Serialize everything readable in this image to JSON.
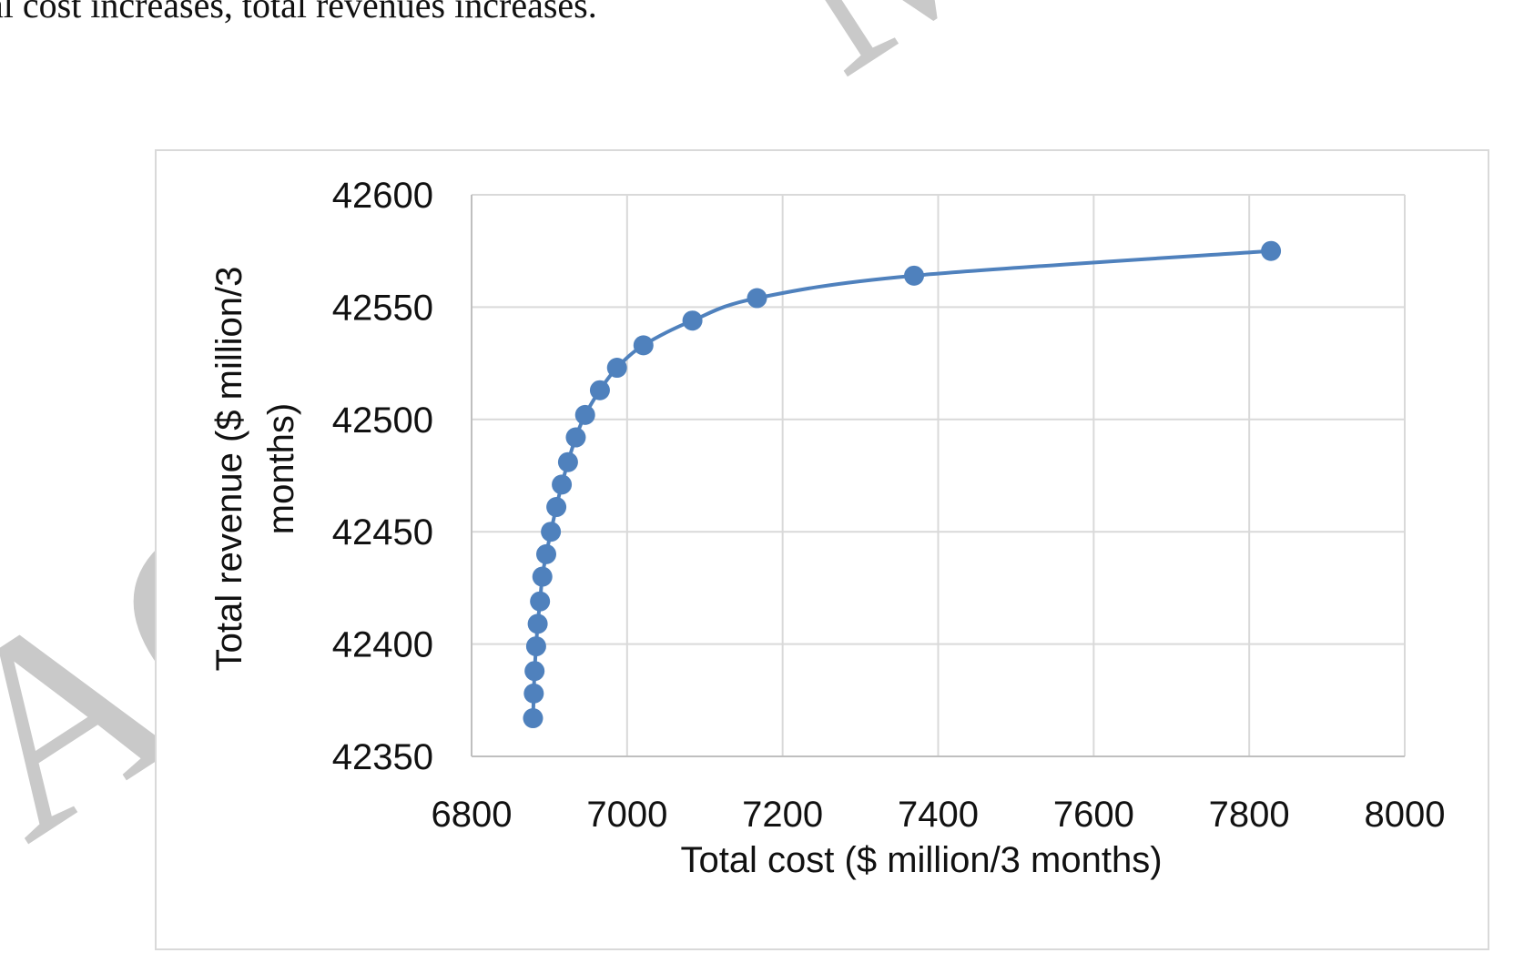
{
  "intro_text": "al cost increases, total revenues increases.",
  "watermark_text": "ACCEPTED MANUSCRIPT",
  "chart_data": {
    "type": "scatter",
    "title": "",
    "xlabel": "Total cost ($ million/3 months)",
    "ylabel_lines": [
      "Total revenue ($ million/3",
      "months)"
    ],
    "xlim": [
      6800,
      8000
    ],
    "ylim": [
      42350,
      42600
    ],
    "xticks": [
      6800,
      7000,
      7200,
      7400,
      7600,
      7800,
      8000
    ],
    "yticks": [
      42350,
      42400,
      42450,
      42500,
      42550,
      42600
    ],
    "grid": true,
    "legend": "none",
    "marker_color": "#4f81bd",
    "line_color": "#4f81bd",
    "series": [
      {
        "x": [
          6879,
          6880,
          6881,
          6883,
          6885,
          6888,
          6891,
          6896,
          6902,
          6909,
          6916,
          6924,
          6934,
          6946,
          6965,
          6987,
          7021,
          7084,
          7167,
          7369,
          7828
        ],
        "y": [
          42367,
          42378,
          42388,
          42399,
          42409,
          42419,
          42430,
          42440,
          42450,
          42461,
          42471,
          42481,
          42492,
          42502,
          42513,
          42523,
          42533,
          42544,
          42554,
          42564,
          42575
        ]
      }
    ]
  }
}
